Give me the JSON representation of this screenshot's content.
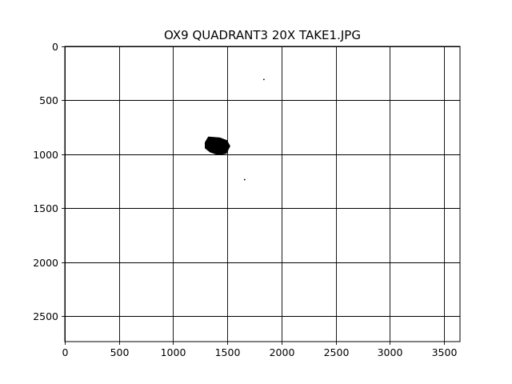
{
  "chart_data": {
    "type": "scatter",
    "title": "OX9 QUADRANT3 20X TAKE1.JPG",
    "xlabel": "",
    "ylabel": "",
    "xlim": [
      0,
      3648
    ],
    "ylim": [
      2736,
      0
    ],
    "y_axis_inverted": true,
    "grid": true,
    "legend": "none",
    "xticks": [
      0,
      500,
      1000,
      1500,
      2000,
      2500,
      3000,
      3500
    ],
    "yticks": [
      0,
      500,
      1000,
      1500,
      2000,
      2500
    ],
    "colors": {
      "background": "#ffffff",
      "marks": "#000000",
      "grid": "#000000"
    },
    "blobs": [
      {
        "x_center": 1410,
        "y_center": 920,
        "width": 220,
        "height": 160,
        "fill": "#000000"
      }
    ],
    "points": [
      {
        "x": 1838,
        "y": 307
      },
      {
        "x": 1660,
        "y": 1235
      }
    ]
  }
}
